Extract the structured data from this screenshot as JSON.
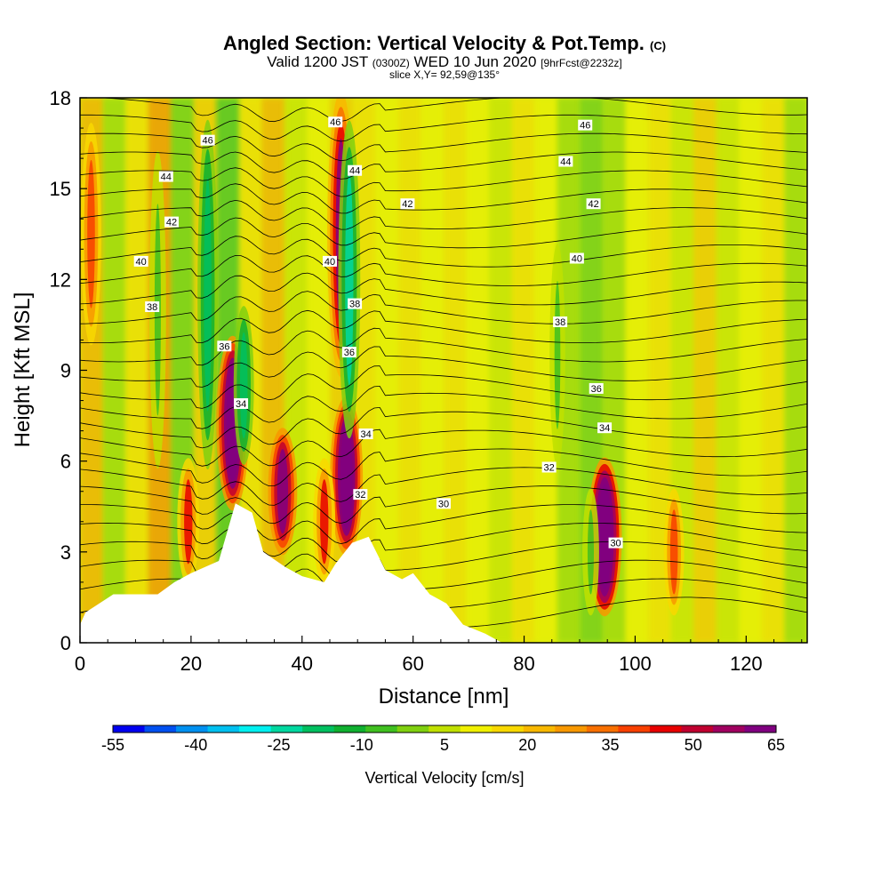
{
  "header": {
    "title_main": "Angled Section: Vertical Velocity & Pot.Temp.",
    "title_tag": "(C)",
    "valid_prefix": "Valid 1200 JST",
    "valid_utc": "(0300Z)",
    "valid_date": "WED 10 Jun 2020",
    "forecast": "[9hrFcst@2232z]",
    "slice": "slice X,Y= 92,59@135°"
  },
  "colorbar": {
    "label": "Vertical Velocity [cm/s]",
    "tick_labels": [
      "-55",
      "-40",
      "-25",
      "-10",
      "5",
      "20",
      "35",
      "50",
      "65"
    ],
    "colors": [
      "#0000f0",
      "#0050f0",
      "#0090f0",
      "#00c0f0",
      "#00f0f0",
      "#00d8a0",
      "#00c060",
      "#10b030",
      "#40c020",
      "#80d010",
      "#c0e000",
      "#f0f000",
      "#f8d800",
      "#f8b800",
      "#f89800",
      "#f87000",
      "#f84000",
      "#e80000",
      "#c00030",
      "#a00060",
      "#800080"
    ],
    "min": -55,
    "step": 5
  },
  "chart_data": {
    "type": "heatmap",
    "xlabel": "Distance [nm]",
    "ylabel": "Height [Kft MSL]",
    "xlim": [
      0,
      131
    ],
    "ylim": [
      0,
      18
    ],
    "x_ticks": [
      0,
      20,
      40,
      60,
      80,
      100,
      120
    ],
    "y_ticks": [
      0,
      3,
      6,
      9,
      12,
      15,
      18
    ],
    "velocity_features": [
      {
        "x": 27.5,
        "y_range": [
          4.5,
          10
        ],
        "value": 60
      },
      {
        "x": 29.5,
        "y_range": [
          6,
          11
        ],
        "value": -25
      },
      {
        "x": 36.5,
        "y_range": [
          3,
          7
        ],
        "value": 50
      },
      {
        "x": 48,
        "y_range": [
          3,
          8
        ],
        "value": 60
      },
      {
        "x": 47,
        "y_range": [
          9,
          18
        ],
        "value": 45
      },
      {
        "x": 48.5,
        "y_range": [
          7,
          17
        ],
        "value": -30
      },
      {
        "x": 94.5,
        "y_range": [
          1,
          6
        ],
        "value": 65
      },
      {
        "x": 92,
        "y_range": [
          1,
          5
        ],
        "value": -15
      },
      {
        "x": 19.5,
        "y_range": [
          2,
          6
        ],
        "value": 30
      },
      {
        "x": 23,
        "y_range": [
          6,
          17
        ],
        "value": -25
      },
      {
        "x": 14,
        "y_range": [
          6,
          16
        ],
        "value": -15
      },
      {
        "x": 44,
        "y_range": [
          2,
          6
        ],
        "value": 30
      },
      {
        "x": 107,
        "y_range": [
          1,
          5
        ],
        "value": 25
      },
      {
        "x": 2,
        "y_range": [
          10,
          17
        ],
        "value": 25
      },
      {
        "x": 86,
        "y_range": [
          6,
          13
        ],
        "value": -12
      }
    ],
    "theta_contour_labels": [
      {
        "value": "46",
        "x": 23,
        "y": 16.6
      },
      {
        "value": "44",
        "x": 15.5,
        "y": 15.4
      },
      {
        "value": "42",
        "x": 16.5,
        "y": 13.9
      },
      {
        "value": "40",
        "x": 11,
        "y": 12.6
      },
      {
        "value": "38",
        "x": 13,
        "y": 11.1
      },
      {
        "value": "36",
        "x": 26,
        "y": 9.8
      },
      {
        "value": "34",
        "x": 29,
        "y": 7.9
      },
      {
        "value": "46",
        "x": 46,
        "y": 17.2
      },
      {
        "value": "44",
        "x": 49.5,
        "y": 15.6
      },
      {
        "value": "42",
        "x": 59,
        "y": 14.5
      },
      {
        "value": "40",
        "x": 45,
        "y": 12.6
      },
      {
        "value": "38",
        "x": 49.5,
        "y": 11.2
      },
      {
        "value": "36",
        "x": 48.5,
        "y": 9.6
      },
      {
        "value": "34",
        "x": 51.5,
        "y": 6.9
      },
      {
        "value": "32",
        "x": 50.5,
        "y": 4.9
      },
      {
        "value": "30",
        "x": 65.5,
        "y": 4.6
      },
      {
        "value": "46",
        "x": 91,
        "y": 17.1
      },
      {
        "value": "44",
        "x": 87.5,
        "y": 15.9
      },
      {
        "value": "42",
        "x": 92.5,
        "y": 14.5
      },
      {
        "value": "40",
        "x": 89.5,
        "y": 12.7
      },
      {
        "value": "38",
        "x": 86.5,
        "y": 10.6
      },
      {
        "value": "36",
        "x": 93,
        "y": 8.4
      },
      {
        "value": "34",
        "x": 94.5,
        "y": 7.1
      },
      {
        "value": "32",
        "x": 84.5,
        "y": 5.8
      },
      {
        "value": "30",
        "x": 96.5,
        "y": 3.3
      }
    ]
  }
}
